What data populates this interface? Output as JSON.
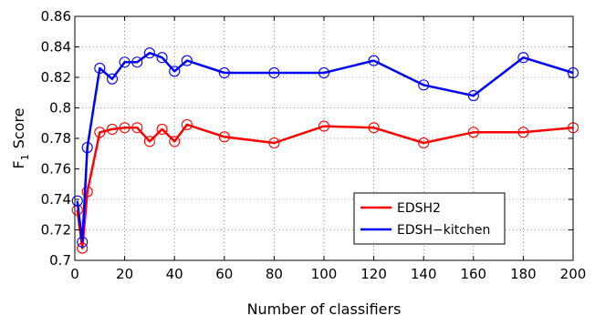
{
  "chart_data": {
    "type": "line",
    "xlabel": "Number of classifiers",
    "ylabel": "Score",
    "ylabel_prefix": "F",
    "ylabel_subscript": "1",
    "xlim": [
      0,
      200
    ],
    "ylim": [
      0.7,
      0.86
    ],
    "xticks": [
      0,
      20,
      40,
      60,
      80,
      100,
      120,
      140,
      160,
      180,
      200
    ],
    "yticks": [
      0.7,
      0.72,
      0.74,
      0.76,
      0.78,
      0.8,
      0.82,
      0.84,
      0.86
    ],
    "xtick_labels": [
      "0",
      "20",
      "40",
      "60",
      "80",
      "100",
      "120",
      "140",
      "160",
      "180",
      "200"
    ],
    "ytick_labels": [
      "0.7",
      "0.72",
      "0.74",
      "0.76",
      "0.78",
      "0.8",
      "0.82",
      "0.84",
      "0.86"
    ],
    "grid": "dotted",
    "legend_position": "lower-right",
    "marker": "circle",
    "x": [
      1,
      3,
      5,
      10,
      15,
      20,
      25,
      30,
      35,
      40,
      45,
      60,
      80,
      100,
      120,
      140,
      160,
      180,
      200
    ],
    "series": [
      {
        "name": "EDSH2",
        "color": "#ff0000",
        "values": [
          0.733,
          0.708,
          0.745,
          0.784,
          0.786,
          0.787,
          0.787,
          0.778,
          0.786,
          0.778,
          0.789,
          0.781,
          0.777,
          0.788,
          0.787,
          0.777,
          0.784,
          0.784,
          0.787
        ]
      },
      {
        "name": "EDSH−kitchen",
        "color": "#0000ff",
        "values": [
          0.739,
          0.712,
          0.774,
          0.826,
          0.819,
          0.83,
          0.83,
          0.836,
          0.833,
          0.824,
          0.831,
          0.823,
          0.823,
          0.823,
          0.831,
          0.815,
          0.808,
          0.833,
          0.823
        ]
      }
    ]
  }
}
